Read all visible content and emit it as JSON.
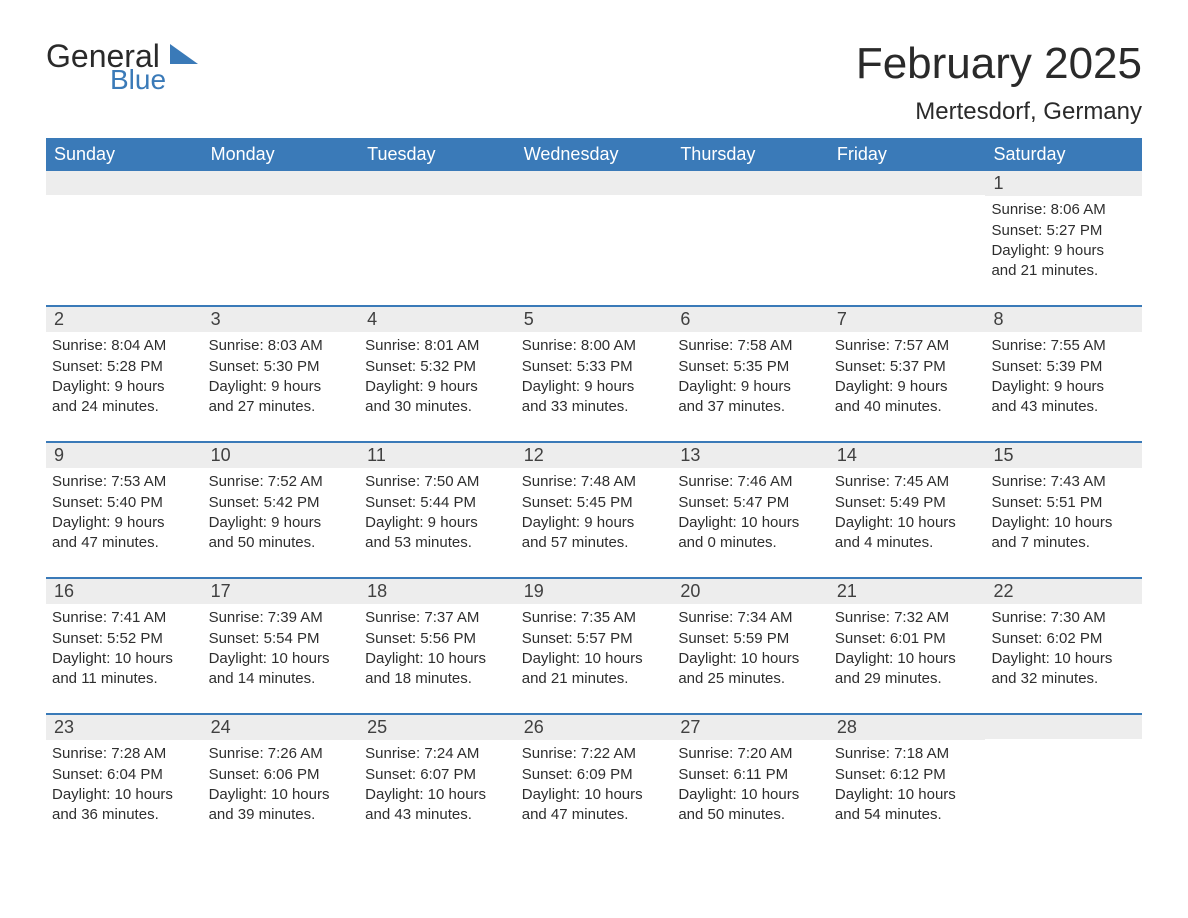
{
  "brand": {
    "line1": "General",
    "line2": "Blue",
    "accent_color": "#3a7ab8",
    "text_color": "#2a2a2a"
  },
  "header": {
    "title": "February 2025",
    "location": "Mertesdorf, Germany"
  },
  "colors": {
    "header_bg": "#3a7ab8",
    "header_text": "#ffffff",
    "daynum_bg": "#ededed",
    "rule": "#3a7ab8",
    "body_text": "#2e2e2e",
    "page_bg": "#ffffff"
  },
  "typography": {
    "title_fontsize": 44,
    "location_fontsize": 24,
    "dow_fontsize": 18,
    "daynum_fontsize": 18,
    "body_fontsize": 15
  },
  "layout": {
    "columns": 7,
    "rows": 5,
    "week_start": "Sunday"
  },
  "daysOfWeek": [
    "Sunday",
    "Monday",
    "Tuesday",
    "Wednesday",
    "Thursday",
    "Friday",
    "Saturday"
  ],
  "weeks": [
    [
      null,
      null,
      null,
      null,
      null,
      null,
      {
        "n": "1",
        "sunrise": "Sunrise: 8:06 AM",
        "sunset": "Sunset: 5:27 PM",
        "daylight1": "Daylight: 9 hours",
        "daylight2": "and 21 minutes."
      }
    ],
    [
      {
        "n": "2",
        "sunrise": "Sunrise: 8:04 AM",
        "sunset": "Sunset: 5:28 PM",
        "daylight1": "Daylight: 9 hours",
        "daylight2": "and 24 minutes."
      },
      {
        "n": "3",
        "sunrise": "Sunrise: 8:03 AM",
        "sunset": "Sunset: 5:30 PM",
        "daylight1": "Daylight: 9 hours",
        "daylight2": "and 27 minutes."
      },
      {
        "n": "4",
        "sunrise": "Sunrise: 8:01 AM",
        "sunset": "Sunset: 5:32 PM",
        "daylight1": "Daylight: 9 hours",
        "daylight2": "and 30 minutes."
      },
      {
        "n": "5",
        "sunrise": "Sunrise: 8:00 AM",
        "sunset": "Sunset: 5:33 PM",
        "daylight1": "Daylight: 9 hours",
        "daylight2": "and 33 minutes."
      },
      {
        "n": "6",
        "sunrise": "Sunrise: 7:58 AM",
        "sunset": "Sunset: 5:35 PM",
        "daylight1": "Daylight: 9 hours",
        "daylight2": "and 37 minutes."
      },
      {
        "n": "7",
        "sunrise": "Sunrise: 7:57 AM",
        "sunset": "Sunset: 5:37 PM",
        "daylight1": "Daylight: 9 hours",
        "daylight2": "and 40 minutes."
      },
      {
        "n": "8",
        "sunrise": "Sunrise: 7:55 AM",
        "sunset": "Sunset: 5:39 PM",
        "daylight1": "Daylight: 9 hours",
        "daylight2": "and 43 minutes."
      }
    ],
    [
      {
        "n": "9",
        "sunrise": "Sunrise: 7:53 AM",
        "sunset": "Sunset: 5:40 PM",
        "daylight1": "Daylight: 9 hours",
        "daylight2": "and 47 minutes."
      },
      {
        "n": "10",
        "sunrise": "Sunrise: 7:52 AM",
        "sunset": "Sunset: 5:42 PM",
        "daylight1": "Daylight: 9 hours",
        "daylight2": "and 50 minutes."
      },
      {
        "n": "11",
        "sunrise": "Sunrise: 7:50 AM",
        "sunset": "Sunset: 5:44 PM",
        "daylight1": "Daylight: 9 hours",
        "daylight2": "and 53 minutes."
      },
      {
        "n": "12",
        "sunrise": "Sunrise: 7:48 AM",
        "sunset": "Sunset: 5:45 PM",
        "daylight1": "Daylight: 9 hours",
        "daylight2": "and 57 minutes."
      },
      {
        "n": "13",
        "sunrise": "Sunrise: 7:46 AM",
        "sunset": "Sunset: 5:47 PM",
        "daylight1": "Daylight: 10 hours",
        "daylight2": "and 0 minutes."
      },
      {
        "n": "14",
        "sunrise": "Sunrise: 7:45 AM",
        "sunset": "Sunset: 5:49 PM",
        "daylight1": "Daylight: 10 hours",
        "daylight2": "and 4 minutes."
      },
      {
        "n": "15",
        "sunrise": "Sunrise: 7:43 AM",
        "sunset": "Sunset: 5:51 PM",
        "daylight1": "Daylight: 10 hours",
        "daylight2": "and 7 minutes."
      }
    ],
    [
      {
        "n": "16",
        "sunrise": "Sunrise: 7:41 AM",
        "sunset": "Sunset: 5:52 PM",
        "daylight1": "Daylight: 10 hours",
        "daylight2": "and 11 minutes."
      },
      {
        "n": "17",
        "sunrise": "Sunrise: 7:39 AM",
        "sunset": "Sunset: 5:54 PM",
        "daylight1": "Daylight: 10 hours",
        "daylight2": "and 14 minutes."
      },
      {
        "n": "18",
        "sunrise": "Sunrise: 7:37 AM",
        "sunset": "Sunset: 5:56 PM",
        "daylight1": "Daylight: 10 hours",
        "daylight2": "and 18 minutes."
      },
      {
        "n": "19",
        "sunrise": "Sunrise: 7:35 AM",
        "sunset": "Sunset: 5:57 PM",
        "daylight1": "Daylight: 10 hours",
        "daylight2": "and 21 minutes."
      },
      {
        "n": "20",
        "sunrise": "Sunrise: 7:34 AM",
        "sunset": "Sunset: 5:59 PM",
        "daylight1": "Daylight: 10 hours",
        "daylight2": "and 25 minutes."
      },
      {
        "n": "21",
        "sunrise": "Sunrise: 7:32 AM",
        "sunset": "Sunset: 6:01 PM",
        "daylight1": "Daylight: 10 hours",
        "daylight2": "and 29 minutes."
      },
      {
        "n": "22",
        "sunrise": "Sunrise: 7:30 AM",
        "sunset": "Sunset: 6:02 PM",
        "daylight1": "Daylight: 10 hours",
        "daylight2": "and 32 minutes."
      }
    ],
    [
      {
        "n": "23",
        "sunrise": "Sunrise: 7:28 AM",
        "sunset": "Sunset: 6:04 PM",
        "daylight1": "Daylight: 10 hours",
        "daylight2": "and 36 minutes."
      },
      {
        "n": "24",
        "sunrise": "Sunrise: 7:26 AM",
        "sunset": "Sunset: 6:06 PM",
        "daylight1": "Daylight: 10 hours",
        "daylight2": "and 39 minutes."
      },
      {
        "n": "25",
        "sunrise": "Sunrise: 7:24 AM",
        "sunset": "Sunset: 6:07 PM",
        "daylight1": "Daylight: 10 hours",
        "daylight2": "and 43 minutes."
      },
      {
        "n": "26",
        "sunrise": "Sunrise: 7:22 AM",
        "sunset": "Sunset: 6:09 PM",
        "daylight1": "Daylight: 10 hours",
        "daylight2": "and 47 minutes."
      },
      {
        "n": "27",
        "sunrise": "Sunrise: 7:20 AM",
        "sunset": "Sunset: 6:11 PM",
        "daylight1": "Daylight: 10 hours",
        "daylight2": "and 50 minutes."
      },
      {
        "n": "28",
        "sunrise": "Sunrise: 7:18 AM",
        "sunset": "Sunset: 6:12 PM",
        "daylight1": "Daylight: 10 hours",
        "daylight2": "and 54 minutes."
      },
      null
    ]
  ]
}
